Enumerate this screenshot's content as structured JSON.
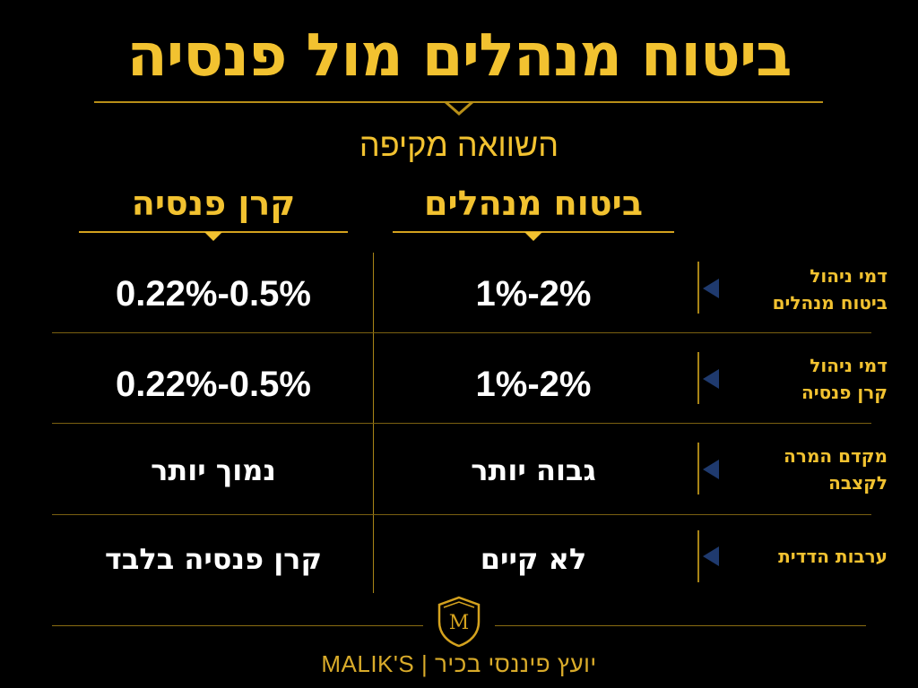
{
  "title": "ביטוח מנהלים מול פנסיה",
  "subtitle": "השוואה מקיפה",
  "columns": {
    "manager": "ביטוח מנהלים",
    "pension": "קרן פנסיה"
  },
  "rows": [
    {
      "label_line1": "דמי ניהול",
      "label_line2": "ביטוח מנהלים",
      "manager": "1%-2%",
      "pension": "0.22%-0.5%"
    },
    {
      "label_line1": "דמי ניהול",
      "label_line2": "קרן פנסיה",
      "manager": "1%-2%",
      "pension": "0.22%-0.5%"
    },
    {
      "label_line1": "מקדם המרה",
      "label_line2": "לקצבה",
      "manager": "גבוה יותר",
      "pension": "נמוך יותר"
    },
    {
      "label_line1": "ערבות הדדית",
      "label_line2": "",
      "manager": "לא קיים",
      "pension": "קרן פנסיה בלבד"
    }
  ],
  "footer": {
    "logo_letter": "M",
    "brand": "MALIK'S",
    "separator": "|",
    "tagline": "יועץ פיננסי בכיר"
  },
  "colors": {
    "background": "#000000",
    "accent": "#f2c230",
    "accent_dark": "#a88416",
    "pointer": "#1f3a6e",
    "text": "#ffffff"
  }
}
